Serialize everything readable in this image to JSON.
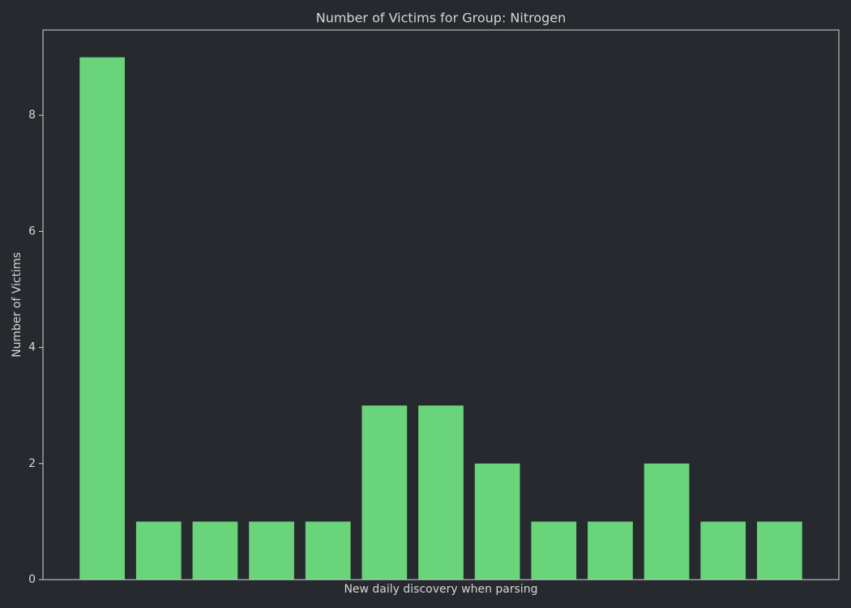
{
  "chart_data": {
    "type": "bar",
    "title": "Number of Victims for Group: Nitrogen",
    "x_label": "New daily discovery when parsing",
    "y_label": "Number of Victims",
    "categories": [
      null,
      null,
      null,
      null,
      null,
      null,
      null,
      null,
      null,
      null,
      null,
      null,
      null
    ],
    "values": [
      9,
      1,
      1,
      1,
      1,
      3,
      3,
      2,
      1,
      1,
      2,
      1,
      1
    ],
    "color": "#6ad47a",
    "ylim": [
      0,
      9.47
    ],
    "yticks": [
      0,
      2,
      4,
      6,
      8
    ],
    "grid": false
  }
}
